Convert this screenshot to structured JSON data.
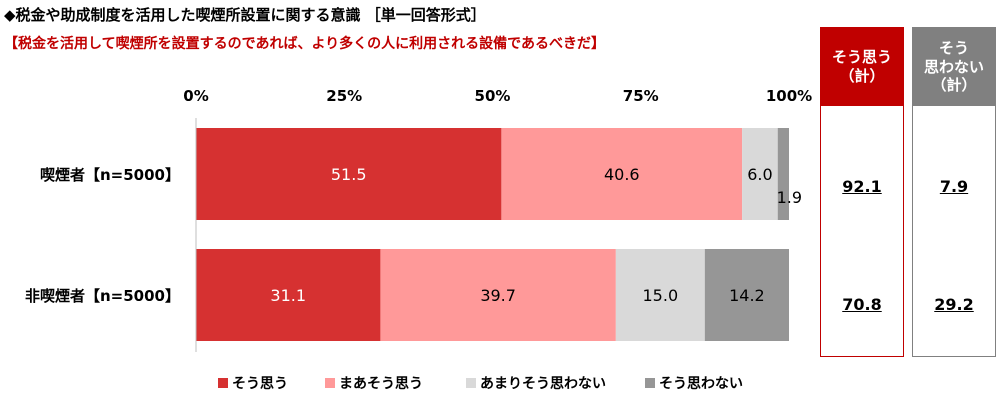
{
  "header": {
    "title": "◆税金や助成制度を活用した喫煙所設置に関する意識 ［単一回答形式］",
    "subtitle": "【税金を活用して喫煙所を設置するのであれば、より多くの人に利用される設備であるべきだ】"
  },
  "summary": {
    "agree_header": "そう思う\n（計）",
    "disagree_header": "そう\n思わない\n（計）",
    "rows": [
      {
        "agree": "92.1",
        "disagree": "7.9"
      },
      {
        "agree": "70.8",
        "disagree": "29.2"
      }
    ]
  },
  "chart_data": {
    "type": "bar",
    "orientation": "horizontal",
    "stacked": true,
    "categories": [
      "喫煙者【n=5000】",
      "非喫煙者【n=5000】"
    ],
    "series": [
      {
        "name": "そう思う",
        "values": [
          51.5,
          31.1
        ],
        "color": "#d63131",
        "label_color": "#ffffff"
      },
      {
        "name": "まあそう思う",
        "values": [
          40.6,
          39.7
        ],
        "color": "#ff9999",
        "label_color": "#000000"
      },
      {
        "name": "あまりそう思わない",
        "values": [
          6.0,
          15.0
        ],
        "color": "#d9d9d9",
        "label_color": "#000000"
      },
      {
        "name": "そう思わない",
        "values": [
          1.9,
          14.2
        ],
        "color": "#969696",
        "label_color": "#000000"
      }
    ],
    "xticks": [
      "0%",
      "25%",
      "50%",
      "75%",
      "100%"
    ],
    "xlim": [
      0,
      100
    ],
    "legend_position": "bottom"
  }
}
